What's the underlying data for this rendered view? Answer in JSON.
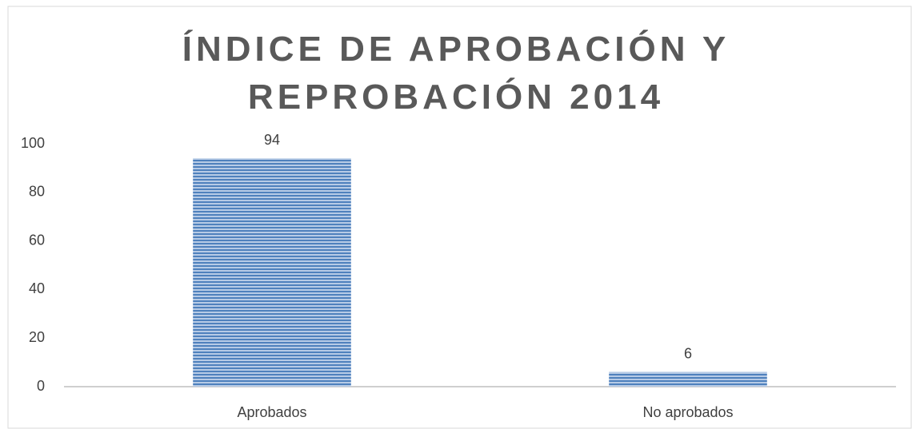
{
  "chart_data": {
    "type": "bar",
    "title": "ÍNDICE DE APROBACIÓN Y REPROBACIÓN 2014",
    "categories": [
      "Aprobados",
      "No aprobados"
    ],
    "values": [
      94,
      6
    ],
    "color": "#4f81bd",
    "ylim": [
      0,
      100
    ],
    "yticks": [
      0,
      20,
      40,
      60,
      80,
      100
    ],
    "grid": false
  }
}
